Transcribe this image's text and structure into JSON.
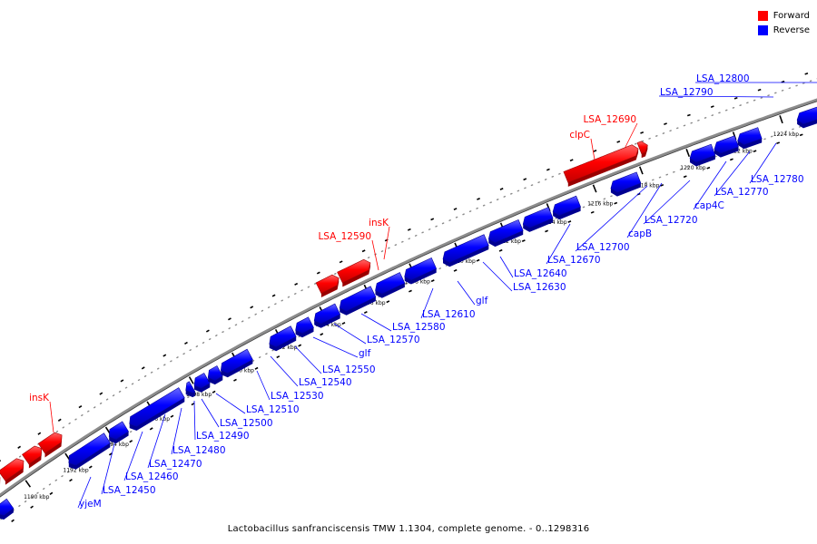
{
  "legend": {
    "forward_label": "Forward",
    "reverse_label": "Reverse",
    "forward_color": "#ff0000",
    "reverse_color": "#0000ff"
  },
  "caption": "Lactobacillus sanfranciscensis TMW 1.1304, complete genome. - 0..1298316",
  "ticks": [
    "1190 kbp",
    "1192 kbp",
    "1194 kbp",
    "1196 kbp",
    "1198 kbp",
    "1200 kbp",
    "1202 kbp",
    "1204 kbp",
    "1206 kbp",
    "1208 kbp",
    "1210 kbp",
    "1212 kbp",
    "1214 kbp",
    "1216 kbp",
    "1218 kbp",
    "1220 kbp",
    "1222 kbp",
    "1224 kbp"
  ],
  "forward_genes": [
    {
      "label": "insK"
    },
    {
      "label": "LSA_12590"
    },
    {
      "label": "insK"
    },
    {
      "label": "clpC"
    },
    {
      "label": "LSA_12690"
    }
  ],
  "reverse_genes": [
    {
      "label": "yjeM"
    },
    {
      "label": "LSA_12450"
    },
    {
      "label": "LSA_12460"
    },
    {
      "label": "LSA_12470"
    },
    {
      "label": "LSA_12480"
    },
    {
      "label": "LSA_12490"
    },
    {
      "label": "LSA_12500"
    },
    {
      "label": "LSA_12510"
    },
    {
      "label": "LSA_12530"
    },
    {
      "label": "LSA_12540"
    },
    {
      "label": "LSA_12550"
    },
    {
      "label": "glf"
    },
    {
      "label": "LSA_12570"
    },
    {
      "label": "LSA_12580"
    },
    {
      "label": "LSA_12610"
    },
    {
      "label": "glf"
    },
    {
      "label": "LSA_12630"
    },
    {
      "label": "LSA_12640"
    },
    {
      "label": "LSA_12670"
    },
    {
      "label": "LSA_12700"
    },
    {
      "label": "capB"
    },
    {
      "label": "LSA_12720"
    },
    {
      "label": "cap4C"
    },
    {
      "label": "LSA_12770"
    },
    {
      "label": "LSA_12780"
    },
    {
      "label": "LSA_12790"
    },
    {
      "label": "LSA_12800"
    }
  ]
}
